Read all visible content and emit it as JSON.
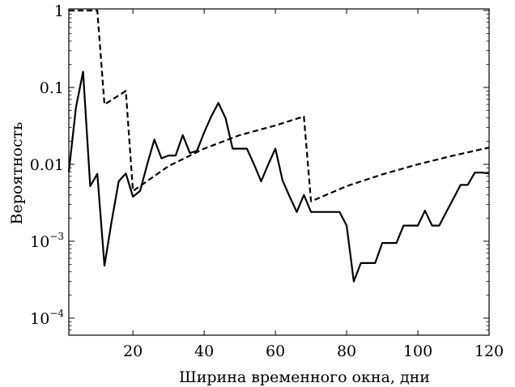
{
  "chart_data": {
    "type": "line",
    "xlabel": "Ширина временного окна, дни",
    "ylabel": "Вероятность",
    "xlim": [
      2,
      120
    ],
    "ylim": [
      6e-05,
      1.05
    ],
    "yscale": "log",
    "grid": false,
    "x_ticks": [
      20,
      40,
      60,
      80,
      100,
      120
    ],
    "y_ticks": [
      {
        "value": 1,
        "label": "1"
      },
      {
        "value": 0.1,
        "label": "0.1"
      },
      {
        "value": 0.01,
        "label": "0.01"
      },
      {
        "value": 0.001,
        "base": "10",
        "exp": "−3"
      },
      {
        "value": 0.0001,
        "base": "10",
        "exp": "−4"
      }
    ],
    "series": [
      {
        "style": "solid",
        "x": [
          2,
          4,
          6,
          8,
          10,
          12,
          14,
          16,
          18,
          20,
          22,
          24,
          26,
          28,
          30,
          32,
          34,
          36,
          38,
          40,
          42,
          44,
          46,
          48,
          50,
          52,
          54,
          56,
          58,
          60,
          62,
          64,
          66,
          68,
          70,
          72,
          74,
          76,
          78,
          80,
          82,
          84,
          86,
          88,
          90,
          92,
          94,
          96,
          98,
          100,
          102,
          104,
          106,
          108,
          110,
          112,
          114,
          116,
          118,
          120
        ],
        "y": [
          0.008,
          0.055,
          0.16,
          0.0052,
          0.0075,
          0.00048,
          0.0018,
          0.006,
          0.0076,
          0.0038,
          0.0045,
          0.01,
          0.021,
          0.012,
          0.013,
          0.013,
          0.024,
          0.014,
          0.015,
          0.026,
          0.042,
          0.063,
          0.04,
          0.016,
          0.016,
          0.016,
          0.01,
          0.006,
          0.01,
          0.016,
          0.0062,
          0.0038,
          0.0024,
          0.004,
          0.0024,
          0.0024,
          0.0024,
          0.0024,
          0.0024,
          0.0016,
          0.0003,
          0.00052,
          0.00052,
          0.00052,
          0.00095,
          0.00095,
          0.00095,
          0.0016,
          0.0016,
          0.0016,
          0.0025,
          0.0016,
          0.0016,
          0.0024,
          0.0036,
          0.0054,
          0.0054,
          0.0078,
          0.0078,
          0.0076
        ]
      },
      {
        "style": "dashed",
        "x": [
          2,
          10,
          12,
          18,
          20,
          30,
          40,
          50,
          60,
          68,
          70,
          80,
          90,
          100,
          110,
          120
        ],
        "y": [
          1.0,
          1.0,
          0.06,
          0.09,
          0.0045,
          0.0095,
          0.016,
          0.024,
          0.032,
          0.042,
          0.0033,
          0.0052,
          0.0074,
          0.01,
          0.013,
          0.0165
        ]
      }
    ]
  }
}
